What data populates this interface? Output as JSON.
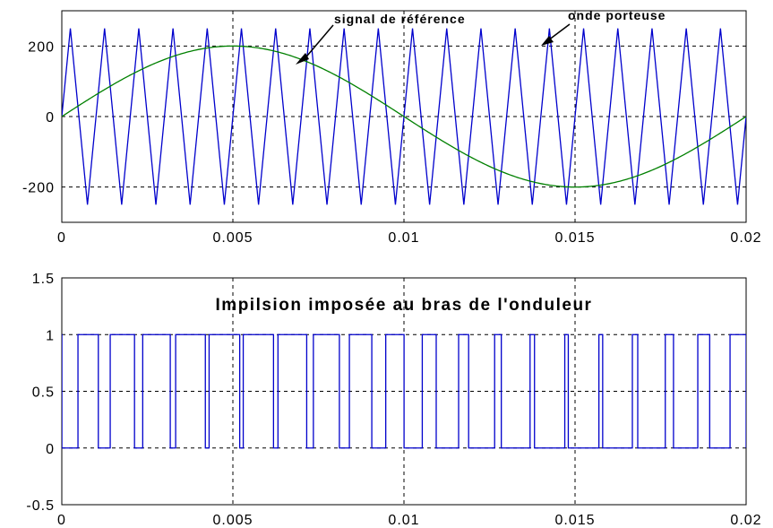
{
  "chart_data": [
    {
      "type": "line",
      "xlim": [
        0,
        0.02
      ],
      "ylim": [
        -300,
        300
      ],
      "xticks": [
        0,
        0.005,
        0.01,
        0.015,
        0.02
      ],
      "xtick_labels": [
        "0",
        "0.005",
        "0.01",
        "0.015",
        "0.02"
      ],
      "yticks": [
        -200,
        0,
        200
      ],
      "ytick_labels": [
        "-200",
        "0",
        "200"
      ],
      "grid": true,
      "series": [
        {
          "name": "signal de référence",
          "kind": "sine",
          "amplitude": 200,
          "frequency_hz": 50,
          "color": "#008000"
        },
        {
          "name": "onde porteuse",
          "kind": "triangle",
          "amplitude": 250,
          "frequency_hz": 1000,
          "color": "#0000cc"
        }
      ],
      "annotations": [
        {
          "text": "signal de référence",
          "points_to": {
            "x": 0.0071,
            "y": 180
          }
        },
        {
          "text": "onde porteuse",
          "points_to": {
            "x": 0.0141,
            "y": 240
          }
        }
      ]
    },
    {
      "type": "line",
      "title": "Impilsion imposée au bras de l'onduleur",
      "xlim": [
        0,
        0.02
      ],
      "ylim": [
        -0.5,
        1.5
      ],
      "xticks": [
        0,
        0.005,
        0.01,
        0.015,
        0.02
      ],
      "xtick_labels": [
        "0",
        "0.005",
        "0.01",
        "0.015",
        "0.02"
      ],
      "yticks": [
        -0.5,
        0,
        0.5,
        1,
        1.5
      ],
      "ytick_labels": [
        "-0.5",
        "0",
        "0.5",
        "1",
        "1.5"
      ],
      "grid": true,
      "series": [
        {
          "kind": "pwm",
          "derived_from": "comparison of signal de référence with onde porteuse",
          "high": 1,
          "low": 0,
          "color": "#0000cc"
        }
      ]
    }
  ]
}
